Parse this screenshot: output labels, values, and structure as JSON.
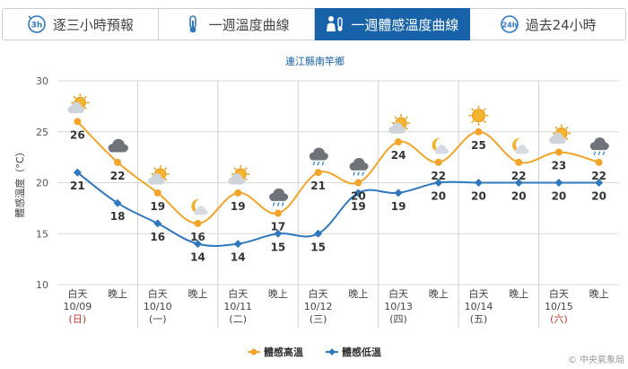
{
  "tabs": [
    {
      "label": "逐三小時預報",
      "icon": "three-hour-clock-icon",
      "active": false
    },
    {
      "label": "一週溫度曲線",
      "icon": "thermometer-icon",
      "active": false
    },
    {
      "label": "一週體感溫度曲線",
      "icon": "person-thermometer-icon",
      "active": true
    },
    {
      "label": "過去24小時",
      "icon": "24h-clock-icon",
      "active": false
    }
  ],
  "chart_data": {
    "type": "line",
    "title": "連江縣南竿鄉",
    "ylabel": "體感溫度（°C）",
    "ylim": [
      10,
      30
    ],
    "yticks": [
      10,
      15,
      20,
      25,
      30
    ],
    "categories": [
      {
        "period": "白天",
        "date": "10/09",
        "weekday": "(日)",
        "weekend": true
      },
      {
        "period": "晚上",
        "date": "",
        "weekday": "",
        "weekend": false
      },
      {
        "period": "白天",
        "date": "10/10",
        "weekday": "(一)",
        "weekend": false
      },
      {
        "period": "晚上",
        "date": "",
        "weekday": "",
        "weekend": false
      },
      {
        "period": "白天",
        "date": "10/11",
        "weekday": "(二)",
        "weekend": false
      },
      {
        "period": "晚上",
        "date": "",
        "weekday": "",
        "weekend": false
      },
      {
        "period": "白天",
        "date": "10/12",
        "weekday": "(三)",
        "weekend": false
      },
      {
        "period": "晚上",
        "date": "",
        "weekday": "",
        "weekend": false
      },
      {
        "period": "白天",
        "date": "10/13",
        "weekday": "(四)",
        "weekend": false
      },
      {
        "period": "晚上",
        "date": "",
        "weekday": "",
        "weekend": false
      },
      {
        "period": "白天",
        "date": "10/14",
        "weekday": "(五)",
        "weekend": false
      },
      {
        "period": "晚上",
        "date": "",
        "weekday": "",
        "weekend": false
      },
      {
        "period": "白天",
        "date": "10/15",
        "weekday": "(六)",
        "weekend": true
      },
      {
        "period": "晚上",
        "date": "",
        "weekday": "",
        "weekend": false
      }
    ],
    "series": [
      {
        "name": "體感高溫",
        "color": "#f2a52a",
        "values": [
          26,
          22,
          19,
          16,
          19,
          17,
          21,
          20,
          24,
          22,
          25,
          22,
          23,
          22
        ]
      },
      {
        "name": "體感低溫",
        "color": "#2f78be",
        "values": [
          21,
          18,
          16,
          14,
          14,
          15,
          15,
          19,
          19,
          20,
          20,
          20,
          20,
          20
        ]
      }
    ],
    "weather_icons": [
      "partly-cloudy-sun-icon",
      "cloudy-icon",
      "partly-cloudy-sun-icon",
      "moon-cloud-icon",
      "partly-cloudy-sun-icon",
      "cloud-rain-icon",
      "cloud-rain-icon",
      "cloud-rain-icon",
      "partly-cloudy-sun-icon",
      "moon-cloud-icon",
      "sunny-icon",
      "moon-cloud-icon",
      "partly-cloudy-sun-icon",
      "cloud-rain-icon"
    ],
    "legend": "bottom",
    "grid": true,
    "weekend_color": "#c0392b"
  },
  "credit": "© 中央氣象局"
}
